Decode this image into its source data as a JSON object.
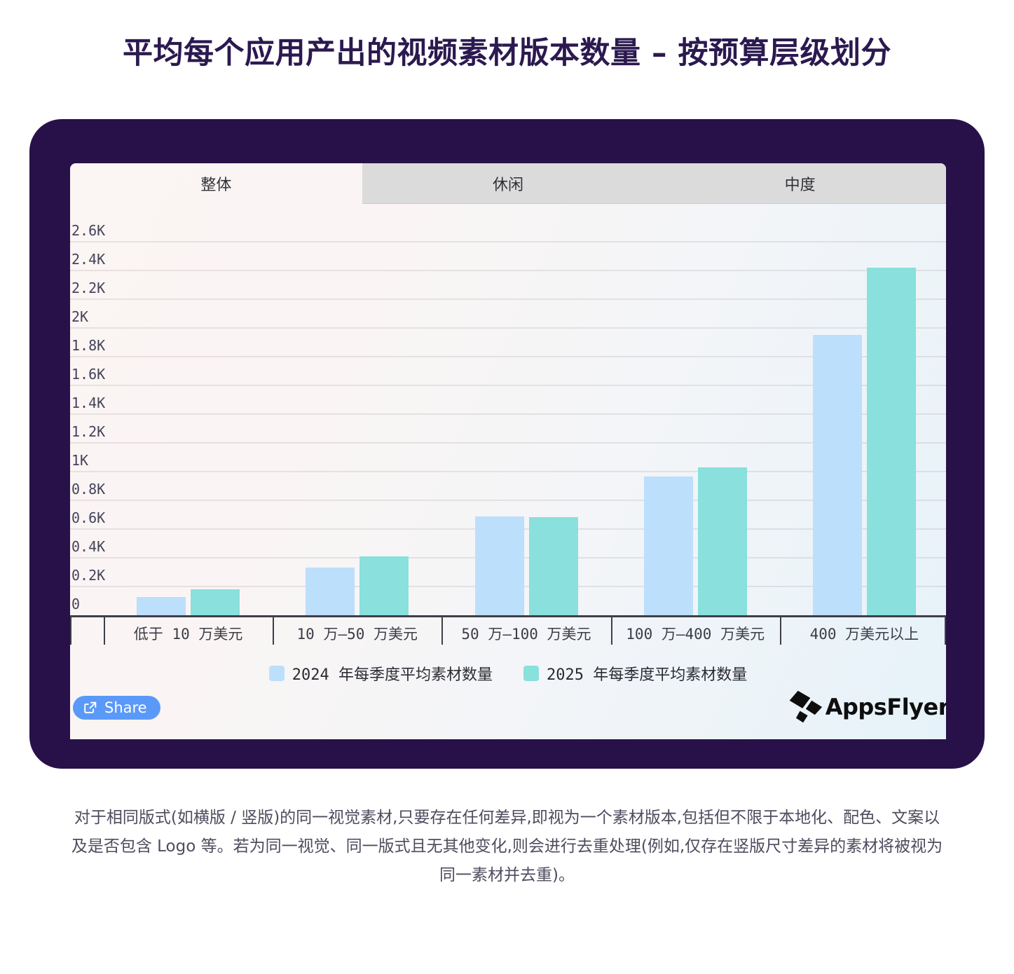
{
  "page": {
    "title": "平均每个应用产出的视频素材版本数量 – 按预算层级划分",
    "footnote": "对于相同版式(如横版 / 竖版)的同一视觉素材,只要存在任何差异,即视为一个素材版本,包括但不限于本地化、配色、文案以及是否包含 Logo 等。若为同一视觉、同一版式且无其他变化,则会进行去重处理(例如,仅存在竖版尺寸差异的素材将被视为同一素材并去重)。"
  },
  "tabs": [
    {
      "label": "整体",
      "active": true
    },
    {
      "label": "休闲",
      "active": false
    },
    {
      "label": "中度",
      "active": false
    }
  ],
  "share": {
    "label": "Share"
  },
  "brand": {
    "name": "AppsFlyer"
  },
  "colors": {
    "card": "#281148",
    "title": "#2b194f",
    "bar_2024": "#bcdffc",
    "bar_2025": "#89e0dc",
    "share_button": "#5a99f8",
    "axis": "#3f3e4a"
  },
  "chart_data": {
    "type": "bar",
    "title": "平均每个应用产出的视频素材版本数量 – 按预算层级划分",
    "categories": [
      "低于 10 万美元",
      "10 万–50 万美元",
      "50 万–100 万美元",
      "100 万–400 万美元",
      "400 万美元以上"
    ],
    "series": [
      {
        "name": "2024 年每季度平均素材数量",
        "color": "#bcdffc",
        "values": [
          130,
          335,
          690,
          965,
          1950
        ]
      },
      {
        "name": "2025 年每季度平均素材数量",
        "color": "#89e0dc",
        "values": [
          180,
          410,
          685,
          1030,
          2420
        ]
      }
    ],
    "xlabel": "",
    "ylabel": "",
    "ylim": [
      0,
      2600
    ],
    "y_tick_values": [
      0,
      200,
      400,
      600,
      800,
      1000,
      1200,
      1400,
      1600,
      1800,
      2000,
      2200,
      2400,
      2600
    ],
    "y_tick_labels": [
      "0",
      "0.2K",
      "0.4K",
      "0.6K",
      "0.8K",
      "1K",
      "1.2K",
      "1.4K",
      "1.6K",
      "1.8K",
      "2K",
      "2.2K",
      "2.4K",
      "2.6K"
    ],
    "grid": true,
    "legend_position": "bottom"
  }
}
